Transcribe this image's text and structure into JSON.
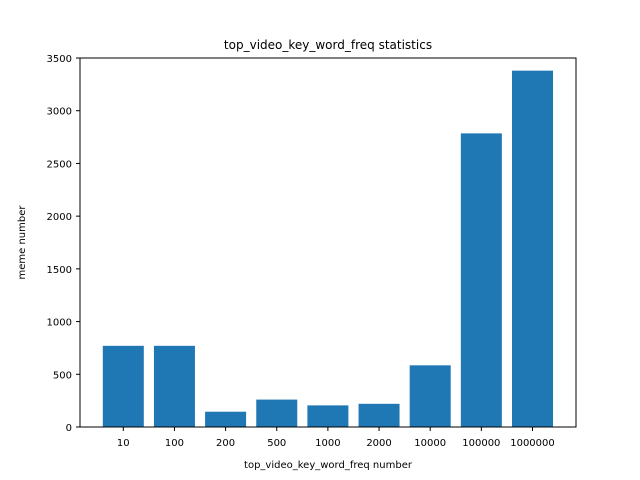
{
  "chart_data": {
    "type": "bar",
    "title": "top_video_key_word_freq statistics",
    "xlabel": "top_video_key_word_freq number",
    "ylabel": "meme number",
    "categories": [
      "10",
      "100",
      "200",
      "500",
      "1000",
      "2000",
      "10000",
      "100000",
      "1000000"
    ],
    "values": [
      770,
      770,
      145,
      260,
      205,
      220,
      585,
      2785,
      3380
    ],
    "ylim": [
      0,
      3500
    ],
    "yticks": [
      0,
      500,
      1000,
      1500,
      2000,
      2500,
      3000,
      3500
    ],
    "bar_color": "#1f77b4",
    "grid": false,
    "legend": "none"
  }
}
